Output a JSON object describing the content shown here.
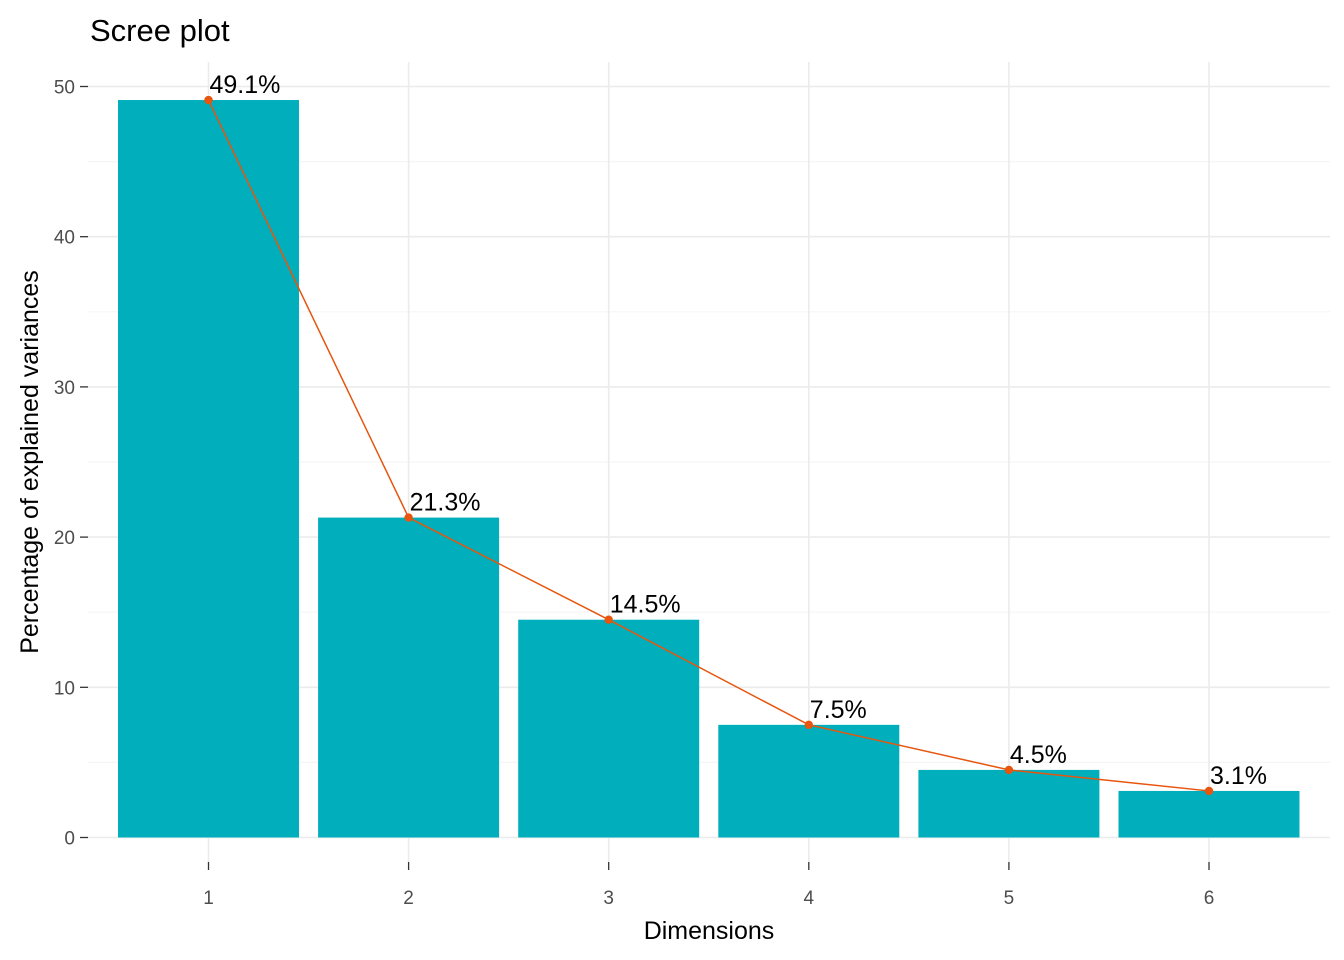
{
  "chart_data": {
    "type": "bar",
    "title": "Scree plot",
    "xlabel": "Dimensions",
    "ylabel": "Percentage of explained variances",
    "categories": [
      "1",
      "2",
      "3",
      "4",
      "5",
      "6"
    ],
    "values": [
      49.1,
      21.3,
      14.5,
      7.5,
      4.5,
      3.1
    ],
    "data_labels": [
      "49.1%",
      "21.3%",
      "14.5%",
      "7.5%",
      "4.5%",
      "3.1%"
    ],
    "ylim": [
      0,
      52
    ],
    "yticks": [
      0,
      10,
      20,
      30,
      40,
      50
    ],
    "grid": true,
    "overlay_line": true,
    "bar_color": "#00AFBB",
    "line_color": "#E7550E"
  }
}
